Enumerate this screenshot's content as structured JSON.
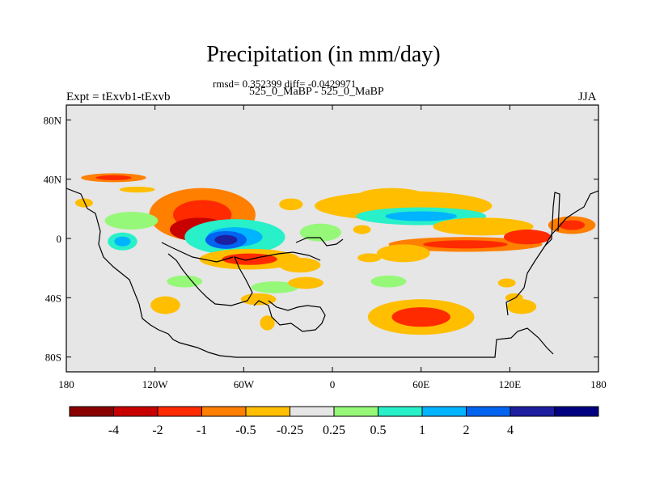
{
  "title": "Precipitation (in mm/day)",
  "stats": "rmsd= 0.352399 diff= -0.0429971",
  "expt_label": "Expt = tExvb1-tExvb",
  "expt_name": "525_0_MaBP - 525_0_MaBP",
  "season": "JJA",
  "chart_data": {
    "type": "heatmap",
    "title": "Precipitation (in mm/day)",
    "variable": "precipitation difference",
    "units": "mm/day",
    "x_ticks": [
      {
        "value": -180,
        "label": "180"
      },
      {
        "value": -120,
        "label": "120W"
      },
      {
        "value": -60,
        "label": "60W"
      },
      {
        "value": 0,
        "label": "0"
      },
      {
        "value": 60,
        "label": "60E"
      },
      {
        "value": 120,
        "label": "120E"
      },
      {
        "value": 180,
        "label": "180"
      }
    ],
    "y_ticks": [
      {
        "value": 80,
        "label": "80N"
      },
      {
        "value": 40,
        "label": "40N"
      },
      {
        "value": 0,
        "label": "0"
      },
      {
        "value": -40,
        "label": "40S"
      },
      {
        "value": -80,
        "label": "80S"
      }
    ],
    "xlim": [
      -180,
      180
    ],
    "ylim": [
      -90,
      90
    ],
    "colorbar": {
      "labels": [
        "-4",
        "-2",
        "-1",
        "-0.5",
        "-0.25",
        "0.25",
        "0.5",
        "1",
        "2",
        "4"
      ],
      "colors": [
        "#8a0000",
        "#c80000",
        "#ff2a00",
        "#ff7f00",
        "#ffbe00",
        "#e6e6e6",
        "#96f878",
        "#28f0c8",
        "#00b4ff",
        "#0064f0",
        "#1e1ea0",
        "#000080"
      ]
    },
    "anomalies": [
      {
        "lon": -148,
        "lat": 41,
        "rlon": 22,
        "rlat": 3,
        "value": -0.6,
        "core": -1.2
      },
      {
        "lon": -132,
        "lat": 33,
        "rlon": 12,
        "rlat": 2,
        "value": -0.3
      },
      {
        "lon": -168,
        "lat": 24,
        "rlon": 6,
        "rlat": 3,
        "value": -0.4
      },
      {
        "lon": -88,
        "lat": 16,
        "rlon": 36,
        "rlat": 18,
        "value": -0.6,
        "core": -1.5
      },
      {
        "lon": -90,
        "lat": 6,
        "rlon": 20,
        "rlat": 8,
        "value": -2.2
      },
      {
        "lon": -66,
        "lat": 1,
        "rlon": 34,
        "rlat": 12,
        "value": 0.6,
        "core": 1.2
      },
      {
        "lon": -72,
        "lat": -1,
        "rlon": 14,
        "rlat": 6,
        "value": 2.2,
        "core": 5
      },
      {
        "lon": -142,
        "lat": -2,
        "rlon": 10,
        "rlat": 6,
        "value": 0.6,
        "core": 1.2
      },
      {
        "lon": -136,
        "lat": 12,
        "rlon": 18,
        "rlat": 6,
        "value": 0.3
      },
      {
        "lon": -56,
        "lat": -14,
        "rlon": 34,
        "rlat": 7,
        "value": -0.5,
        "core": -1.2
      },
      {
        "lon": -22,
        "lat": -18,
        "rlon": 14,
        "rlat": 5,
        "value": -0.3
      },
      {
        "lon": -8,
        "lat": 4,
        "rlon": 14,
        "rlat": 6,
        "value": 0.3
      },
      {
        "lon": -28,
        "lat": 23,
        "rlon": 8,
        "rlat": 4,
        "value": -0.3
      },
      {
        "lon": 48,
        "lat": 22,
        "rlon": 60,
        "rlat": 10,
        "value": -0.4
      },
      {
        "lon": 40,
        "lat": 28,
        "rlon": 24,
        "rlat": 6,
        "value": -0.4
      },
      {
        "lon": 60,
        "lat": 15,
        "rlon": 44,
        "rlat": 6,
        "value": 0.6,
        "core": 1.2
      },
      {
        "lon": 102,
        "lat": 8,
        "rlon": 34,
        "rlat": 6,
        "value": -0.3
      },
      {
        "lon": 90,
        "lat": -4,
        "rlon": 52,
        "rlat": 5,
        "value": -0.6,
        "core": -1.3
      },
      {
        "lon": 132,
        "lat": 1,
        "rlon": 16,
        "rlat": 5,
        "value": -1.5
      },
      {
        "lon": 162,
        "lat": 9,
        "rlon": 16,
        "rlat": 6,
        "value": -0.6,
        "core": -1.3
      },
      {
        "lon": 48,
        "lat": -10,
        "rlon": 18,
        "rlat": 6,
        "value": -0.4
      },
      {
        "lon": 60,
        "lat": -53,
        "rlon": 36,
        "rlat": 12,
        "value": -0.5,
        "core": -1.2
      },
      {
        "lon": 38,
        "lat": -29,
        "rlon": 12,
        "rlat": 4,
        "value": 0.3
      },
      {
        "lon": -39,
        "lat": -33,
        "rlon": 16,
        "rlat": 4,
        "value": 0.3
      },
      {
        "lon": -100,
        "lat": -29,
        "rlon": 12,
        "rlat": 4,
        "value": 0.3
      },
      {
        "lon": -113,
        "lat": -45,
        "rlon": 10,
        "rlat": 6,
        "value": -0.3
      },
      {
        "lon": -50,
        "lat": -41,
        "rlon": 12,
        "rlat": 4,
        "value": -0.3
      },
      {
        "lon": -18,
        "lat": -30,
        "rlon": 12,
        "rlat": 4,
        "value": -0.3
      },
      {
        "lon": -44,
        "lat": -57,
        "rlon": 5,
        "rlat": 5,
        "value": -0.3
      },
      {
        "lon": 128,
        "lat": -46,
        "rlon": 10,
        "rlat": 5,
        "value": -0.3
      },
      {
        "lon": 123,
        "lat": -40,
        "rlon": 6,
        "rlat": 3,
        "value": -0.3
      },
      {
        "lon": 118,
        "lat": -30,
        "rlon": 6,
        "rlat": 3,
        "value": -0.3
      },
      {
        "lon": 20,
        "lat": 6,
        "rlon": 6,
        "rlat": 3,
        "value": -0.3
      },
      {
        "lon": 25,
        "lat": -13,
        "rlon": 8,
        "rlat": 3,
        "value": -0.3
      }
    ]
  }
}
